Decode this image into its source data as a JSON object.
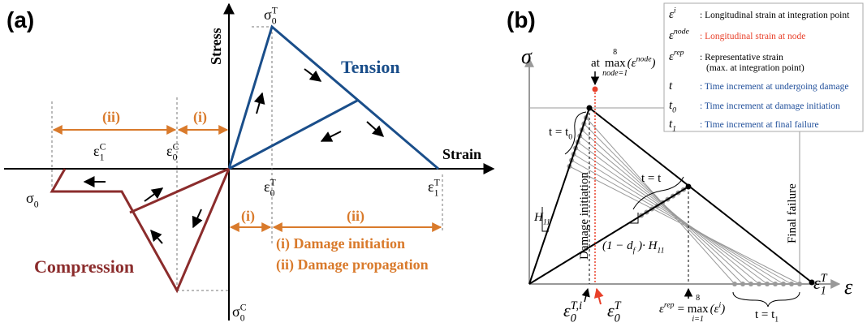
{
  "panel_a": {
    "label": "(a)",
    "y_axis": "Stress",
    "x_axis": "Strain",
    "tension": "Tension",
    "compression": "Compression",
    "sigma0T": [
      {
        "text": "σ"
      },
      {
        "sub": "0"
      },
      {
        "sup": "T"
      }
    ],
    "eps1C": [
      {
        "text": "ε"
      },
      {
        "sub": "1"
      },
      {
        "sup": "C"
      }
    ],
    "eps0C": [
      {
        "text": "ε"
      },
      {
        "sub": "0"
      },
      {
        "sup": "C"
      }
    ],
    "sigma0": [
      {
        "text": "σ"
      },
      {
        "sub": "0"
      }
    ],
    "eps0T": [
      {
        "text": "ε"
      },
      {
        "sub": "0"
      },
      {
        "sup": "T"
      }
    ],
    "eps1T": [
      {
        "text": "ε"
      },
      {
        "sub": "1"
      },
      {
        "sup": "T"
      }
    ],
    "sigma0C": [
      {
        "text": "σ"
      },
      {
        "sub": "0"
      },
      {
        "sup": "C"
      }
    ],
    "range_ii_c": "(ii)",
    "range_i_c": "(i)",
    "range_i_t": "(i)",
    "range_ii_t": "(ii)",
    "key_i": "(i) Damage initiation",
    "key_ii": "(ii) Damage propagation"
  },
  "panel_b": {
    "label": "(b)",
    "y_axis": "σ",
    "x_axis": "ε",
    "legend": [
      {
        "symbol": [
          {
            "text": "ε"
          },
          {
            "sup": "i"
          }
        ],
        "text": ": Longitudinal strain at integration point",
        "color": "#000000"
      },
      {
        "symbol": [
          {
            "text": "ε"
          },
          {
            "sup": "node"
          }
        ],
        "text": ": Longitudinal strain at node",
        "color": "#e8402a"
      },
      {
        "symbol": [
          {
            "text": "ε"
          },
          {
            "sup": "rep"
          }
        ],
        "text": ": Representative strain",
        "note": "(max. at integration point)",
        "color": "#000000"
      },
      {
        "symbol": [
          {
            "text": "t"
          }
        ],
        "text": ": Time increment at undergoing damage",
        "color": "#1f4e9a"
      },
      {
        "symbol": [
          {
            "text": "t"
          },
          {
            "sub": "0"
          }
        ],
        "text": ": Time increment at damage initiation",
        "color": "#1f4e9a"
      },
      {
        "symbol": [
          {
            "text": "t"
          },
          {
            "sub": "1"
          }
        ],
        "text": ": Time increment at final failure",
        "color": "#1f4e9a"
      }
    ],
    "node_max": {
      "prefix": "at",
      "op": "max",
      "upper": "8",
      "lower": "node=1",
      "arg": [
        {
          "text": "(ε"
        },
        {
          "sup": "node"
        },
        {
          "text": ")"
        }
      ]
    },
    "t0_label": [
      {
        "text": "t = t"
      },
      {
        "sub": "0"
      }
    ],
    "t_label": [
      {
        "text": "t = t"
      }
    ],
    "t1_label": [
      {
        "text": "t = t"
      },
      {
        "sub": "1"
      }
    ],
    "h11": [
      {
        "text": "H"
      },
      {
        "sub": "11"
      }
    ],
    "degraded": [
      {
        "text": "(1 − d"
      },
      {
        "sub": "f"
      },
      {
        "text": " )· H"
      },
      {
        "sub": "11"
      }
    ],
    "damage_initiation": "Damage initiation",
    "final_failure": "Final failure",
    "eps0Ti": [
      {
        "text": "ε"
      },
      {
        "sub": "0"
      },
      {
        "sup": "T,i"
      }
    ],
    "eps0T": [
      {
        "text": "ε"
      },
      {
        "sub": "0"
      },
      {
        "sup": "T"
      }
    ],
    "rep_max": {
      "lhs": [
        {
          "text": "ε"
        },
        {
          "sup": "rep"
        }
      ],
      "op": "= max",
      "upper": "8",
      "lower": "i=1",
      "arg": [
        {
          "text": "(ε"
        },
        {
          "sup": "i"
        },
        {
          "text": ")"
        }
      ]
    },
    "eps1T": [
      {
        "text": "ε"
      },
      {
        "sub": "1"
      },
      {
        "sup": "T"
      }
    ]
  }
}
